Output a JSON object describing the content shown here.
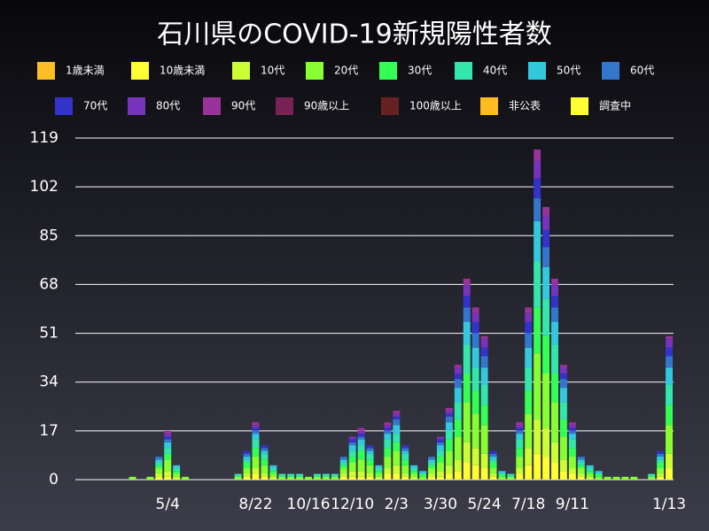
{
  "chart_data": {
    "type": "stacked_bar",
    "title": "石川県のCOVID-19新規陽性者数",
    "categories": [
      null,
      null,
      null,
      null,
      null,
      null,
      null,
      null,
      null,
      null,
      "5/4",
      null,
      null,
      null,
      null,
      null,
      null,
      null,
      null,
      null,
      "8/22",
      null,
      null,
      null,
      null,
      null,
      "10/16",
      null,
      null,
      null,
      null,
      "12/10",
      null,
      null,
      null,
      null,
      "2/3",
      null,
      null,
      null,
      null,
      "3/30",
      null,
      null,
      null,
      null,
      "5/24",
      null,
      null,
      null,
      null,
      "7/18",
      null,
      null,
      null,
      null,
      "9/11",
      null,
      null,
      null,
      null,
      null,
      null,
      null,
      null,
      null,
      null,
      "1/13"
    ],
    "series": [
      {
        "name": "1歳未満",
        "color": "#fbbf24",
        "values": [
          0,
          0,
          0,
          0,
          0,
          0,
          0,
          0,
          0,
          0,
          0,
          0,
          0,
          0,
          0,
          0,
          0,
          0,
          0,
          0,
          0,
          0,
          0,
          0,
          0,
          0,
          0,
          0,
          0,
          0,
          0,
          0,
          0,
          0,
          0,
          0,
          0,
          0,
          0,
          0,
          0,
          0,
          0,
          0,
          0,
          0,
          0,
          0,
          0,
          0,
          0,
          0,
          0,
          0,
          0,
          0,
          0,
          0,
          0,
          0,
          0,
          0,
          0,
          0,
          0,
          0,
          0,
          0
        ]
      },
      {
        "name": "10歳未満",
        "color": "#ffff33",
        "values": [
          0,
          0,
          0,
          0,
          0,
          0,
          0,
          0,
          0,
          1,
          1,
          0,
          0,
          0,
          0,
          0,
          0,
          0,
          0,
          1,
          2,
          1,
          0,
          0,
          0,
          0,
          0,
          0,
          0,
          0,
          1,
          1,
          1,
          1,
          0,
          2,
          2,
          1,
          0,
          0,
          1,
          1,
          2,
          3,
          6,
          5,
          4,
          1,
          0,
          0,
          2,
          5,
          9,
          8,
          6,
          3,
          2,
          1,
          0,
          0,
          0,
          0,
          0,
          0,
          0,
          0,
          1,
          4
        ]
      },
      {
        "name": "10代",
        "color": "#ccff33",
        "values": [
          0,
          0,
          0,
          0,
          0,
          0,
          0,
          0,
          0,
          1,
          2,
          1,
          0,
          0,
          0,
          0,
          0,
          0,
          0,
          1,
          2,
          1,
          1,
          0,
          0,
          0,
          0,
          0,
          0,
          0,
          1,
          2,
          2,
          1,
          1,
          2,
          3,
          1,
          1,
          0,
          1,
          2,
          3,
          4,
          7,
          6,
          5,
          1,
          0,
          0,
          2,
          6,
          12,
          10,
          7,
          4,
          2,
          1,
          1,
          0,
          0,
          0,
          0,
          0,
          0,
          0,
          1,
          5
        ]
      },
      {
        "name": "20代",
        "color": "#88ff33",
        "values": [
          0,
          0,
          0,
          0,
          0,
          0,
          1,
          0,
          1,
          2,
          4,
          1,
          1,
          0,
          0,
          0,
          0,
          0,
          1,
          2,
          4,
          3,
          1,
          1,
          1,
          1,
          1,
          1,
          1,
          1,
          2,
          3,
          4,
          3,
          1,
          4,
          5,
          3,
          1,
          1,
          2,
          3,
          5,
          8,
          14,
          12,
          10,
          2,
          1,
          1,
          4,
          12,
          23,
          19,
          14,
          8,
          4,
          2,
          1,
          1,
          1,
          1,
          1,
          1,
          0,
          1,
          2,
          10
        ]
      },
      {
        "name": "30代",
        "color": "#33ff55",
        "values": [
          0,
          0,
          0,
          0,
          0,
          0,
          0,
          0,
          0,
          1,
          2,
          1,
          0,
          0,
          0,
          0,
          0,
          0,
          0,
          2,
          3,
          2,
          1,
          0,
          0,
          0,
          0,
          0,
          0,
          0,
          1,
          2,
          3,
          2,
          1,
          3,
          3,
          2,
          1,
          1,
          1,
          2,
          4,
          6,
          10,
          8,
          7,
          2,
          1,
          0,
          3,
          8,
          16,
          13,
          10,
          6,
          3,
          1,
          1,
          1,
          0,
          0,
          0,
          0,
          0,
          0,
          2,
          7
        ]
      },
      {
        "name": "40代",
        "color": "#33e6aa",
        "values": [
          0,
          0,
          0,
          0,
          0,
          0,
          0,
          0,
          0,
          1,
          2,
          1,
          0,
          0,
          0,
          0,
          0,
          0,
          1,
          1,
          3,
          2,
          1,
          1,
          1,
          1,
          0,
          1,
          1,
          1,
          1,
          2,
          2,
          2,
          1,
          3,
          3,
          2,
          1,
          0,
          1,
          2,
          3,
          6,
          10,
          8,
          7,
          1,
          0,
          1,
          3,
          8,
          16,
          13,
          10,
          6,
          3,
          1,
          1,
          0,
          0,
          0,
          0,
          0,
          0,
          1,
          1,
          7
        ]
      },
      {
        "name": "50代",
        "color": "#33c8dd",
        "values": [
          0,
          0,
          0,
          0,
          0,
          0,
          0,
          0,
          0,
          1,
          2,
          1,
          0,
          0,
          0,
          0,
          0,
          0,
          0,
          1,
          2,
          1,
          1,
          0,
          0,
          0,
          0,
          0,
          0,
          0,
          1,
          2,
          2,
          1,
          1,
          2,
          3,
          1,
          1,
          1,
          1,
          2,
          3,
          5,
          8,
          7,
          6,
          1,
          1,
          0,
          2,
          7,
          14,
          11,
          8,
          5,
          2,
          1,
          1,
          1,
          0,
          0,
          0,
          0,
          0,
          0,
          1,
          6
        ]
      },
      {
        "name": "60代",
        "color": "#3377cc",
        "values": [
          0,
          0,
          0,
          0,
          0,
          0,
          0,
          0,
          0,
          1,
          1,
          0,
          0,
          0,
          0,
          0,
          0,
          0,
          0,
          1,
          1,
          1,
          0,
          0,
          0,
          0,
          0,
          0,
          0,
          0,
          1,
          1,
          1,
          1,
          0,
          1,
          2,
          1,
          0,
          0,
          1,
          1,
          2,
          3,
          5,
          5,
          4,
          1,
          0,
          0,
          1,
          5,
          8,
          7,
          5,
          3,
          1,
          1,
          0,
          0,
          0,
          0,
          0,
          0,
          0,
          0,
          1,
          4
        ]
      },
      {
        "name": "70代",
        "color": "#3333cc",
        "values": [
          0,
          0,
          0,
          0,
          0,
          0,
          0,
          0,
          0,
          0,
          1,
          0,
          0,
          0,
          0,
          0,
          0,
          0,
          0,
          1,
          1,
          1,
          0,
          0,
          0,
          0,
          0,
          0,
          0,
          0,
          0,
          1,
          1,
          1,
          0,
          1,
          1,
          1,
          0,
          0,
          0,
          1,
          1,
          2,
          4,
          4,
          3,
          1,
          0,
          0,
          1,
          4,
          7,
          6,
          4,
          2,
          1,
          0,
          0,
          0,
          0,
          0,
          0,
          0,
          0,
          0,
          1,
          3
        ]
      },
      {
        "name": "80代",
        "color": "#7733bb",
        "values": [
          0,
          0,
          0,
          0,
          0,
          0,
          0,
          0,
          0,
          0,
          1,
          0,
          0,
          0,
          0,
          0,
          0,
          0,
          0,
          0,
          1,
          0,
          0,
          0,
          0,
          0,
          0,
          0,
          0,
          0,
          0,
          1,
          1,
          0,
          0,
          1,
          1,
          0,
          0,
          0,
          0,
          1,
          1,
          2,
          4,
          3,
          3,
          0,
          0,
          0,
          1,
          3,
          6,
          5,
          4,
          2,
          1,
          0,
          0,
          0,
          0,
          0,
          0,
          0,
          0,
          0,
          0,
          3
        ]
      },
      {
        "name": "90代",
        "color": "#993399",
        "values": [
          0,
          0,
          0,
          0,
          0,
          0,
          0,
          0,
          0,
          0,
          1,
          0,
          0,
          0,
          0,
          0,
          0,
          0,
          0,
          0,
          1,
          0,
          0,
          0,
          0,
          0,
          0,
          0,
          0,
          0,
          0,
          0,
          1,
          0,
          0,
          1,
          1,
          0,
          0,
          0,
          0,
          0,
          1,
          1,
          2,
          2,
          1,
          0,
          0,
          0,
          1,
          2,
          4,
          3,
          2,
          1,
          1,
          0,
          0,
          0,
          0,
          0,
          0,
          0,
          0,
          0,
          0,
          1
        ]
      },
      {
        "name": "90歳以上",
        "color": "#772255",
        "values": [
          0,
          0,
          0,
          0,
          0,
          0,
          0,
          0,
          0,
          0,
          0,
          0,
          0,
          0,
          0,
          0,
          0,
          0,
          0,
          0,
          0,
          0,
          0,
          0,
          0,
          0,
          0,
          0,
          0,
          0,
          0,
          0,
          0,
          0,
          0,
          0,
          0,
          0,
          0,
          0,
          0,
          0,
          0,
          0,
          0,
          0,
          0,
          0,
          0,
          0,
          0,
          0,
          0,
          0,
          0,
          0,
          0,
          0,
          0,
          0,
          0,
          0,
          0,
          0,
          0,
          0,
          0,
          0
        ]
      },
      {
        "name": "100歳以上",
        "color": "#662222",
        "values": [
          0,
          0,
          0,
          0,
          0,
          0,
          0,
          0,
          0,
          0,
          0,
          0,
          0,
          0,
          0,
          0,
          0,
          0,
          0,
          0,
          0,
          0,
          0,
          0,
          0,
          0,
          0,
          0,
          0,
          0,
          0,
          0,
          0,
          0,
          0,
          0,
          0,
          0,
          0,
          0,
          0,
          0,
          0,
          0,
          0,
          0,
          0,
          0,
          0,
          0,
          0,
          0,
          0,
          0,
          0,
          0,
          0,
          0,
          0,
          0,
          0,
          0,
          0,
          0,
          0,
          0,
          0,
          0
        ]
      },
      {
        "name": "非公表",
        "color": "#ffbb22",
        "values": [
          0,
          0,
          0,
          0,
          0,
          0,
          0,
          0,
          0,
          0,
          0,
          0,
          0,
          0,
          0,
          0,
          0,
          0,
          0,
          0,
          0,
          0,
          0,
          0,
          0,
          0,
          0,
          0,
          0,
          0,
          0,
          0,
          0,
          0,
          0,
          0,
          0,
          0,
          0,
          0,
          0,
          0,
          0,
          0,
          0,
          0,
          0,
          0,
          0,
          0,
          0,
          0,
          0,
          0,
          0,
          0,
          0,
          0,
          0,
          0,
          0,
          0,
          0,
          0,
          0,
          0,
          0,
          0
        ]
      },
      {
        "name": "調査中",
        "color": "#ffff33",
        "values": [
          0,
          0,
          0,
          0,
          0,
          0,
          0,
          0,
          0,
          0,
          0,
          0,
          0,
          0,
          0,
          0,
          0,
          0,
          0,
          0,
          0,
          0,
          0,
          0,
          0,
          0,
          0,
          0,
          0,
          0,
          0,
          0,
          0,
          0,
          0,
          0,
          0,
          0,
          0,
          0,
          0,
          0,
          0,
          0,
          0,
          0,
          0,
          0,
          0,
          0,
          0,
          0,
          0,
          0,
          0,
          0,
          0,
          0,
          0,
          0,
          0,
          0,
          0,
          0,
          0,
          0,
          0,
          0
        ]
      }
    ],
    "ylim": [
      0,
      119
    ],
    "yticks": [
      0,
      17,
      34,
      51,
      68,
      85,
      102,
      119
    ],
    "grid": true
  }
}
